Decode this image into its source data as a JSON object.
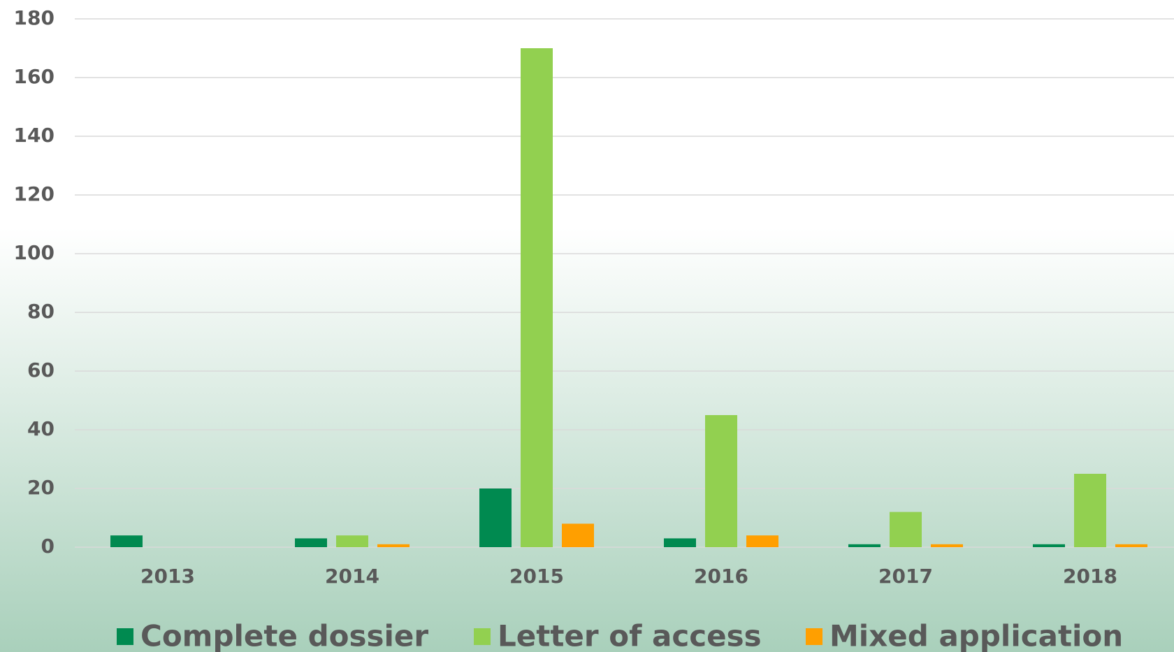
{
  "chart_data": {
    "type": "bar",
    "categories": [
      "2013",
      "2014",
      "2015",
      "2016",
      "2017",
      "2018"
    ],
    "series": [
      {
        "name": "Complete dossier",
        "color": "#008a50",
        "values": [
          4,
          3,
          20,
          3,
          1,
          1
        ]
      },
      {
        "name": "Letter of access",
        "color": "#92d050",
        "values": [
          0,
          4,
          170,
          45,
          12,
          25
        ]
      },
      {
        "name": "Mixed application",
        "color": "#ff9f00",
        "values": [
          0,
          1,
          8,
          4,
          1,
          1
        ]
      }
    ],
    "ylim": [
      0,
      180
    ],
    "yticks": [
      0,
      20,
      40,
      60,
      80,
      100,
      120,
      140,
      160,
      180
    ],
    "grid": true,
    "legend": "bottom"
  }
}
